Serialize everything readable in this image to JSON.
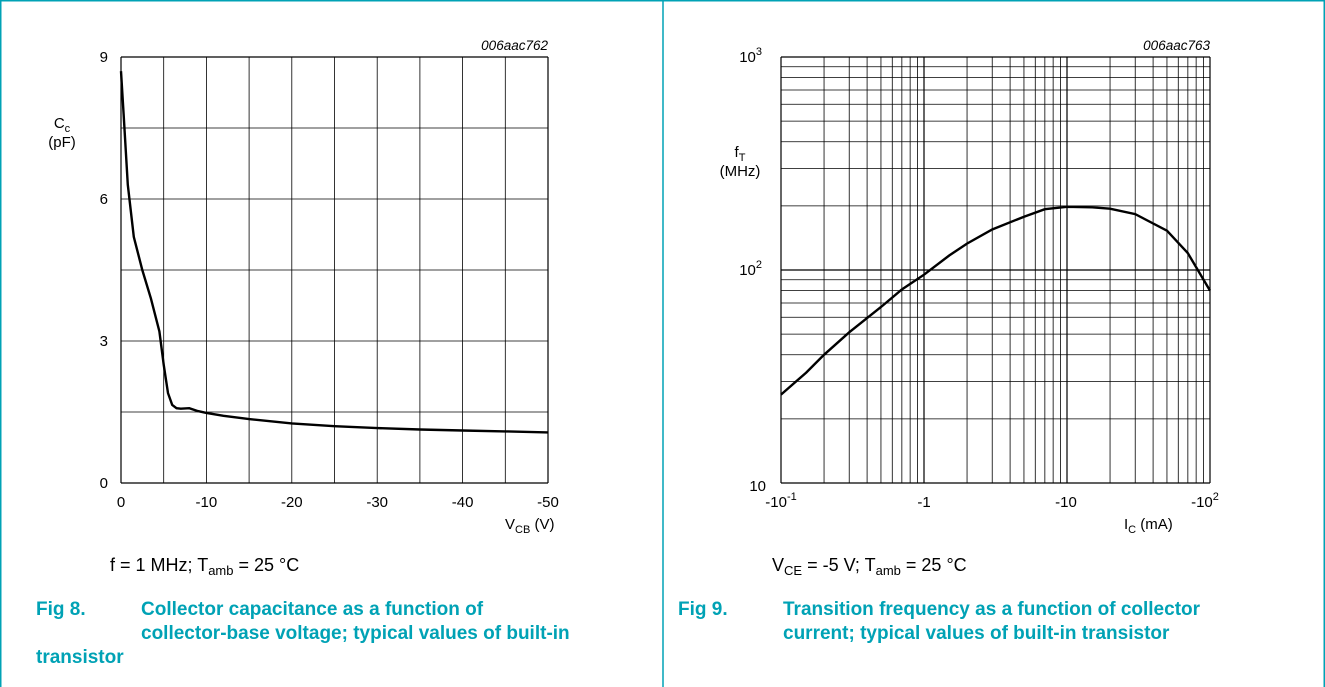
{
  "colors": {
    "border": "#00a2b5",
    "caption": "#00a2b5",
    "grid": "#000000",
    "curve": "#000000"
  },
  "fig8": {
    "code": "006aac762",
    "ylabel_main": "C",
    "ylabel_sub": "c",
    "ylabel_unit": "(pF)",
    "xlabel_main": "V",
    "xlabel_sub": "CB",
    "xlabel_unit": " (V)",
    "conditions": {
      "freq": "f = 1 MHz; T",
      "tsub": "amb",
      "temp": " = 25 °C"
    },
    "caption_num": "Fig 8.",
    "caption_lines": [
      "Collector capacitance as a function of",
      "collector-base voltage; typical values of built-in",
      "transistor"
    ]
  },
  "fig9": {
    "code": "006aac763",
    "ylabel_main": "f",
    "ylabel_sub": "T",
    "ylabel_unit": "(MHz)",
    "xlabel_main": "I",
    "xlabel_sub": "C",
    "xlabel_unit": " (mA)",
    "conditions": {
      "v": "V",
      "vsub": "CE",
      "mid": " = -5 V; T",
      "tsub": "amb",
      "temp": " = 25 °C"
    },
    "caption_num": "Fig 9.",
    "caption_lines": [
      "Transition frequency as a function of collector",
      "current; typical values of built-in transistor"
    ]
  },
  "chart_data": [
    {
      "type": "line",
      "xlabel": "VCB (V)",
      "ylabel": "Cc (pF)",
      "xlim": [
        0,
        -50
      ],
      "ylim": [
        0,
        9
      ],
      "x_ticks": [
        0,
        -10,
        -20,
        -30,
        -40,
        -50
      ],
      "x_tick_labels": [
        "0",
        "-10",
        "-20",
        "-30",
        "-40",
        "-50"
      ],
      "y_ticks": [
        0,
        3,
        6,
        9
      ],
      "y_tick_labels": [
        "0",
        "3",
        "6",
        "9"
      ],
      "grid": true,
      "series": [
        {
          "x": [
            0,
            -0.3,
            -0.8,
            -1.5,
            -2.5,
            -3.5,
            -4.5,
            -5.0,
            -5.5,
            -6.0,
            -6.5,
            -7.0,
            -8.0,
            -9.0,
            -10,
            -12,
            -15,
            -20,
            -25,
            -30,
            -35,
            -40,
            -45,
            -50
          ],
          "y": [
            8.7,
            7.8,
            6.3,
            5.2,
            4.5,
            3.9,
            3.2,
            2.5,
            1.9,
            1.65,
            1.58,
            1.57,
            1.58,
            1.52,
            1.48,
            1.42,
            1.35,
            1.26,
            1.2,
            1.16,
            1.13,
            1.11,
            1.09,
            1.07
          ]
        }
      ]
    },
    {
      "type": "line",
      "xlabel": "IC (mA)",
      "ylabel": "fT (MHz)",
      "x_scale": "log",
      "y_scale": "log",
      "xlim": [
        -0.1,
        -100
      ],
      "ylim": [
        10,
        1000
      ],
      "x_tick_labels": [
        "-10-1",
        "-1",
        "-10",
        "-102"
      ],
      "y_tick_labels": [
        "10",
        "102",
        "103"
      ],
      "grid": true,
      "series": [
        {
          "x": [
            -0.1,
            -0.15,
            -0.2,
            -0.3,
            -0.5,
            -0.7,
            -1,
            -1.5,
            -2,
            -3,
            -5,
            -7,
            -10,
            -15,
            -20,
            -30,
            -50,
            -70,
            -100
          ],
          "y": [
            26,
            33,
            40,
            51,
            67,
            81,
            95,
            117,
            133,
            155,
            178,
            193,
            198,
            197,
            194,
            183,
            153,
            120,
            80
          ]
        }
      ]
    }
  ]
}
